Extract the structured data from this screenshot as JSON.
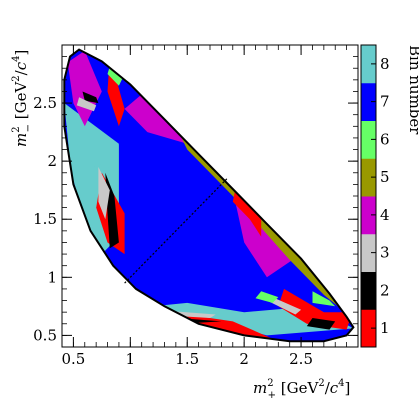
{
  "chart_data": {
    "type": "heatmap",
    "title": "",
    "xlabel": "m²₊ [GeV²/c⁴]",
    "ylabel": "m²₋ [GeV²/c⁴]",
    "xlabel_parts": {
      "m": "m",
      "sup": "2",
      "sub": "+",
      "unit_pre": " [GeV",
      "unit_sup1": "2",
      "unit_mid": "/",
      "unit_c": "c",
      "unit_sup2": "4",
      "unit_post": "]"
    },
    "ylabel_parts": {
      "m": "m",
      "sup": "2",
      "sub": "−",
      "unit_pre": " [GeV",
      "unit_sup1": "2",
      "unit_mid": "/",
      "unit_c": "c",
      "unit_sup2": "4",
      "unit_post": "]"
    },
    "xlim": [
      0.4,
      3.0
    ],
    "ylim": [
      0.4,
      3.0
    ],
    "x_ticks": [
      0.5,
      1,
      1.5,
      2,
      2.5
    ],
    "x_tick_labels": [
      "0.5",
      "1",
      "1.5",
      "2",
      "2.5"
    ],
    "y_ticks": [
      0.5,
      1,
      1.5,
      2,
      2.5
    ],
    "y_tick_labels": [
      "0.5",
      "1",
      "1.5",
      "2",
      "2.5"
    ],
    "colorbar": {
      "label": "Bin number",
      "bins": [
        1,
        2,
        3,
        4,
        5,
        6,
        7,
        8
      ],
      "tick_labels": [
        "1",
        "2",
        "3",
        "4",
        "5",
        "6",
        "7",
        "8"
      ],
      "colors": [
        "#ff0000",
        "#000000",
        "#c8c8c8",
        "#cc00cc",
        "#999900",
        "#66ff66",
        "#0000ff",
        "#66cccc"
      ]
    },
    "dalitz_boundary_points": [
      [
        0.55,
        2.96
      ],
      [
        0.75,
        2.86
      ],
      [
        1.0,
        2.66
      ],
      [
        1.3,
        2.36
      ],
      [
        1.6,
        2.06
      ],
      [
        1.9,
        1.76
      ],
      [
        2.2,
        1.46
      ],
      [
        2.5,
        1.16
      ],
      [
        2.75,
        0.86
      ],
      [
        2.9,
        0.66
      ],
      [
        2.96,
        0.57
      ],
      [
        2.9,
        0.5
      ],
      [
        2.7,
        0.45
      ],
      [
        2.4,
        0.45
      ],
      [
        2.0,
        0.5
      ],
      [
        1.6,
        0.6
      ],
      [
        1.3,
        0.75
      ],
      [
        1.05,
        0.9
      ],
      [
        0.85,
        1.1
      ],
      [
        0.65,
        1.4
      ],
      [
        0.5,
        1.8
      ],
      [
        0.42,
        2.3
      ],
      [
        0.42,
        2.7
      ],
      [
        0.47,
        2.9
      ]
    ],
    "diagonal_line": [
      [
        0.95,
        0.95
      ],
      [
        1.85,
        1.85
      ]
    ],
    "bin_regions": [
      {
        "bin": 8,
        "points": [
          [
            0.42,
            2.5
          ],
          [
            0.9,
            2.15
          ],
          [
            0.95,
            1.4
          ],
          [
            0.75,
            1.2
          ],
          [
            0.6,
            1.5
          ],
          [
            0.48,
            1.9
          ]
        ]
      },
      {
        "bin": 8,
        "points": [
          [
            1.2,
            0.75
          ],
          [
            2.2,
            0.5
          ],
          [
            2.96,
            0.56
          ],
          [
            2.6,
            0.75
          ],
          [
            2.0,
            0.7
          ],
          [
            1.5,
            0.78
          ]
        ]
      },
      {
        "bin": 8,
        "points": [
          [
            0.65,
            2.0
          ],
          [
            0.8,
            1.95
          ],
          [
            1.25,
            1.65
          ],
          [
            1.3,
            1.58
          ],
          [
            1.15,
            1.62
          ],
          [
            0.75,
            1.88
          ]
        ]
      },
      {
        "bin": 8,
        "points": [
          [
            1.55,
            1.25
          ],
          [
            1.62,
            1.2
          ],
          [
            2.0,
            0.92
          ],
          [
            2.05,
            0.85
          ],
          [
            1.95,
            0.88
          ],
          [
            1.55,
            1.18
          ]
        ]
      },
      {
        "bin": 7,
        "points": [
          [
            0.9,
            2.2
          ],
          [
            1.5,
            2.15
          ],
          [
            1.95,
            1.8
          ],
          [
            2.1,
            1.35
          ],
          [
            2.2,
            0.9
          ],
          [
            1.9,
            0.78
          ],
          [
            1.3,
            0.8
          ],
          [
            0.95,
            1.1
          ],
          [
            0.9,
            1.6
          ]
        ]
      },
      {
        "bin": 7,
        "points": [
          [
            0.55,
            2.95
          ],
          [
            0.9,
            2.75
          ],
          [
            0.8,
            2.4
          ],
          [
            0.65,
            2.6
          ]
        ]
      },
      {
        "bin": 4,
        "points": [
          [
            0.45,
            2.85
          ],
          [
            0.6,
            2.95
          ],
          [
            0.75,
            2.6
          ],
          [
            0.6,
            2.3
          ],
          [
            0.5,
            2.5
          ]
        ]
      },
      {
        "bin": 4,
        "points": [
          [
            0.95,
            2.45
          ],
          [
            1.25,
            2.7
          ],
          [
            1.6,
            2.3
          ],
          [
            1.5,
            2.15
          ],
          [
            1.15,
            2.25
          ]
        ]
      },
      {
        "bin": 4,
        "points": [
          [
            1.9,
            1.75
          ],
          [
            2.3,
            1.55
          ],
          [
            2.5,
            1.2
          ],
          [
            2.2,
            1.0
          ],
          [
            2.0,
            1.3
          ]
        ]
      },
      {
        "bin": 5,
        "points": [
          [
            1.2,
            2.7
          ],
          [
            1.6,
            2.5
          ],
          [
            2.0,
            2.0
          ],
          [
            2.5,
            1.55
          ],
          [
            2.9,
            1.0
          ],
          [
            2.95,
            0.65
          ],
          [
            2.7,
            0.85
          ],
          [
            2.4,
            1.15
          ],
          [
            1.9,
            1.7
          ],
          [
            1.5,
            2.1
          ]
        ]
      },
      {
        "bin": 1,
        "points": [
          [
            0.82,
            2.9
          ],
          [
            0.95,
            2.45
          ],
          [
            0.9,
            2.3
          ],
          [
            0.8,
            2.6
          ]
        ]
      },
      {
        "bin": 1,
        "points": [
          [
            0.75,
            1.9
          ],
          [
            0.95,
            1.55
          ],
          [
            0.95,
            1.2
          ],
          [
            0.8,
            1.3
          ],
          [
            0.7,
            1.6
          ]
        ]
      },
      {
        "bin": 1,
        "points": [
          [
            1.95,
            1.9
          ],
          [
            2.15,
            1.7
          ],
          [
            2.15,
            1.35
          ],
          [
            2.05,
            1.5
          ],
          [
            1.9,
            1.65
          ]
        ]
      },
      {
        "bin": 1,
        "points": [
          [
            1.0,
            0.75
          ],
          [
            1.9,
            0.62
          ],
          [
            2.3,
            0.45
          ],
          [
            1.6,
            0.5
          ],
          [
            1.1,
            0.62
          ]
        ]
      },
      {
        "bin": 1,
        "points": [
          [
            2.35,
            0.9
          ],
          [
            2.7,
            0.7
          ],
          [
            2.95,
            0.7
          ],
          [
            2.9,
            0.55
          ],
          [
            2.55,
            0.6
          ],
          [
            2.3,
            0.75
          ]
        ]
      },
      {
        "bin": 2,
        "points": [
          [
            0.78,
            1.9
          ],
          [
            0.86,
            1.7
          ],
          [
            0.9,
            1.3
          ],
          [
            0.82,
            1.25
          ],
          [
            0.8,
            1.55
          ]
        ]
      },
      {
        "bin": 2,
        "points": [
          [
            1.2,
            0.67
          ],
          [
            1.55,
            0.64
          ],
          [
            1.8,
            0.62
          ],
          [
            1.45,
            0.6
          ],
          [
            1.15,
            0.62
          ]
        ]
      },
      {
        "bin": 2,
        "points": [
          [
            2.55,
            0.58
          ],
          [
            2.75,
            0.55
          ],
          [
            2.8,
            0.62
          ],
          [
            2.6,
            0.65
          ]
        ]
      },
      {
        "bin": 2,
        "points": [
          [
            0.58,
            2.6
          ],
          [
            0.7,
            2.55
          ],
          [
            0.72,
            2.5
          ],
          [
            0.6,
            2.52
          ]
        ]
      },
      {
        "bin": 3,
        "points": [
          [
            0.72,
            1.95
          ],
          [
            0.82,
            1.75
          ],
          [
            0.78,
            1.5
          ],
          [
            0.72,
            1.65
          ]
        ]
      },
      {
        "bin": 3,
        "points": [
          [
            0.55,
            2.55
          ],
          [
            0.7,
            2.48
          ],
          [
            0.68,
            2.43
          ],
          [
            0.53,
            2.48
          ]
        ]
      },
      {
        "bin": 3,
        "points": [
          [
            1.35,
            0.71
          ],
          [
            1.75,
            0.68
          ],
          [
            1.7,
            0.65
          ],
          [
            1.35,
            0.67
          ]
        ]
      },
      {
        "bin": 3,
        "points": [
          [
            2.2,
            0.85
          ],
          [
            2.5,
            0.72
          ],
          [
            2.45,
            0.68
          ],
          [
            2.2,
            0.8
          ]
        ]
      },
      {
        "bin": 6,
        "points": [
          [
            0.83,
            2.85
          ],
          [
            0.95,
            2.75
          ],
          [
            0.9,
            2.65
          ],
          [
            0.8,
            2.75
          ]
        ]
      },
      {
        "bin": 6,
        "points": [
          [
            2.15,
            0.88
          ],
          [
            2.3,
            0.83
          ],
          [
            2.25,
            0.78
          ],
          [
            2.1,
            0.82
          ]
        ]
      },
      {
        "bin": 6,
        "points": [
          [
            2.6,
            0.88
          ],
          [
            2.75,
            0.8
          ],
          [
            2.8,
            0.75
          ],
          [
            2.6,
            0.78
          ]
        ]
      }
    ]
  }
}
